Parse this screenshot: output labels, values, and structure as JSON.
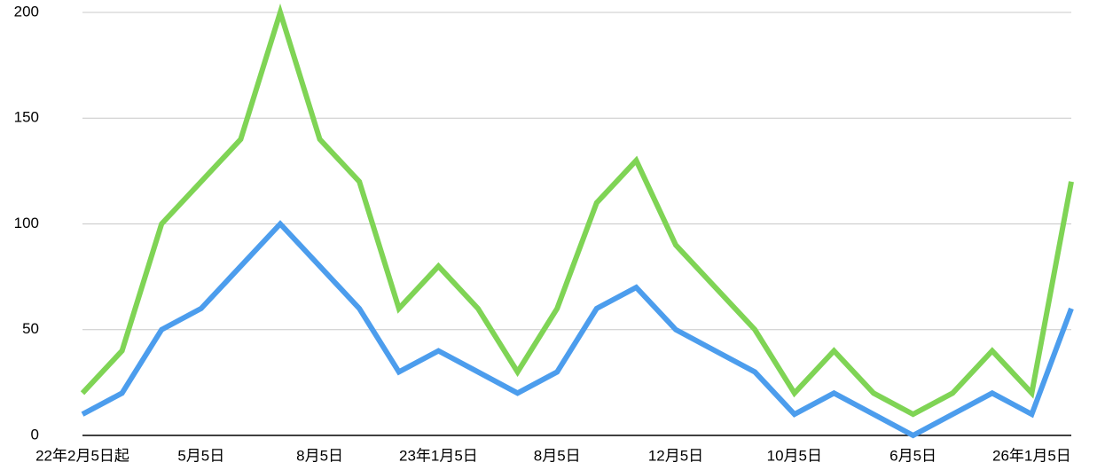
{
  "chart_data": {
    "type": "line",
    "categories": [
      "22年2月5日起",
      null,
      null,
      "5月5日",
      null,
      null,
      "8月5日",
      null,
      null,
      "23年1月5日",
      null,
      null,
      "8月5日",
      null,
      null,
      "12月5日",
      null,
      null,
      "10月5日",
      null,
      null,
      "6月5日",
      null,
      null,
      "26年1月5日",
      null
    ],
    "series": [
      {
        "color": "#7fd455",
        "values": [
          20,
          40,
          100,
          120,
          140,
          200,
          140,
          120,
          60,
          80,
          60,
          30,
          60,
          110,
          130,
          90,
          70,
          50,
          20,
          40,
          20,
          10,
          20,
          40,
          20,
          120
        ]
      },
      {
        "color": "#4c9ded",
        "values": [
          10,
          20,
          50,
          60,
          80,
          100,
          80,
          60,
          30,
          40,
          30,
          20,
          30,
          60,
          70,
          50,
          40,
          30,
          10,
          20,
          10,
          0,
          10,
          20,
          10,
          60
        ]
      }
    ],
    "ylim": [
      0,
      200
    ],
    "yticks": [
      0,
      50,
      100,
      150,
      200
    ],
    "grid": true
  }
}
